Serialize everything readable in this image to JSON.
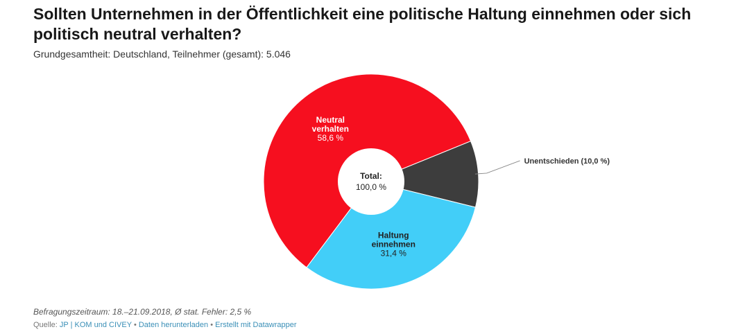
{
  "header": {
    "title": "Sollten Unternehmen in der Öffentlichkeit eine politische Haltung einnehmen oder sich politisch neutral verhalten?",
    "subtitle": "Grundgesamtheit: Deutschland, Teilnehmer (gesamt): 5.046"
  },
  "chart_data": {
    "type": "pie",
    "donut": true,
    "title": "Sollten Unternehmen in der Öffentlichkeit eine politische Haltung einnehmen oder sich politisch neutral verhalten?",
    "center_label": {
      "title": "Total:",
      "value": "100,0 %"
    },
    "slices": [
      {
        "name": "Unentschieden",
        "value": 10.0,
        "label_lines": [
          "Unentschieden (10,0 %)"
        ],
        "color": "#3d3d3d",
        "label_outside": true
      },
      {
        "name": "Haltung einnehmen",
        "value": 31.4,
        "label_lines": [
          "Haltung",
          "einnehmen",
          "31,4 %"
        ],
        "color": "#42cef8",
        "label_outside": false
      },
      {
        "name": "Neutral verhalten",
        "value": 58.6,
        "label_lines": [
          "Neutral",
          "verhalten",
          "58,6 %"
        ],
        "color": "#f60f1f",
        "label_outside": false
      }
    ]
  },
  "footer": {
    "notes": "Befragungszeitraum: 18.–21.09.2018, Ø stat. Fehler: 2,5 %",
    "source_prefix": "Quelle:",
    "source_name": "JP | KOM und CIVEY",
    "separator": "•",
    "download_link": "Daten herunterladen",
    "created_link": "Erstellt mit Datawrapper"
  }
}
